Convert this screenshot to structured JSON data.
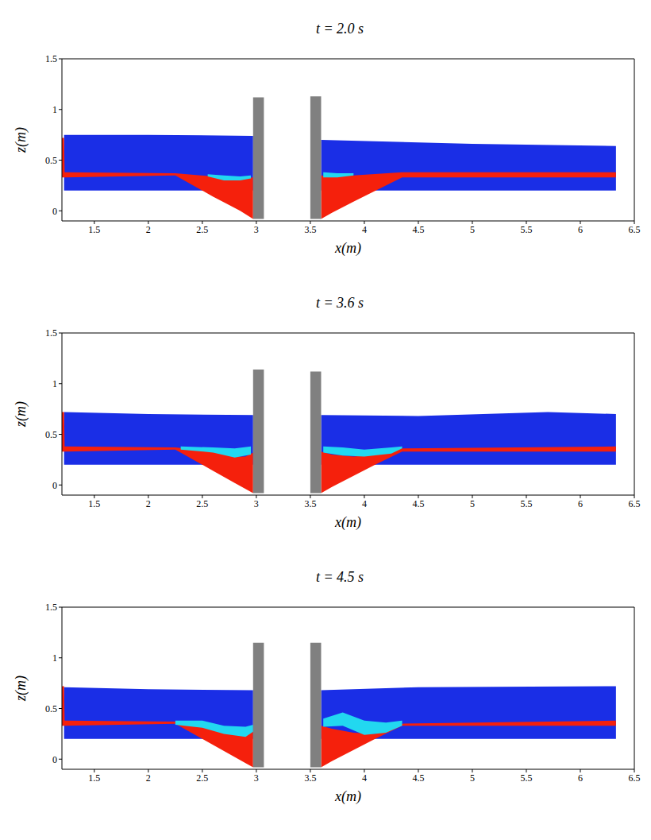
{
  "chart_data": [
    {
      "type": "area",
      "title": "t = 2.0 s",
      "x_label": "x(m)",
      "y_label": "z(m)",
      "xlim": [
        1.2,
        6.5
      ],
      "ylim": [
        -0.1,
        1.5
      ],
      "xticks": [
        1.5,
        2,
        2.5,
        3,
        3.5,
        4,
        4.5,
        5,
        5.5,
        6,
        6.5
      ],
      "yticks": [
        0,
        0.5,
        1,
        1.5
      ],
      "series": [
        {
          "color": "#1a2ee6",
          "x": [
            1.22,
            2.0,
            2.97
          ],
          "values": [
            [
              0.2,
              0.75
            ],
            [
              0.2,
              0.75
            ],
            [
              0.2,
              0.74
            ]
          ]
        },
        {
          "color": "#1a2ee6",
          "x": [
            3.6,
            5.0,
            6.33
          ],
          "values": [
            [
              0.2,
              0.7
            ],
            [
              0.2,
              0.66
            ],
            [
              0.2,
              0.64
            ]
          ]
        },
        {
          "color": "#f5200c",
          "x": [
            1.2,
            1.22,
            1.225,
            2.25,
            2.6,
            2.85,
            2.97
          ],
          "values": [
            [
              0.33,
              0.72
            ],
            [
              0.33,
              0.72
            ],
            [
              0.33,
              0.38
            ],
            [
              0.35,
              0.37
            ],
            [
              0.14,
              0.34
            ],
            [
              0.0,
              0.32
            ],
            [
              -0.08,
              0.33
            ]
          ]
        },
        {
          "color": "#f5200c",
          "x": [
            3.6,
            3.7,
            3.9,
            4.35,
            6.33
          ],
          "values": [
            [
              -0.08,
              0.35
            ],
            [
              -0.02,
              0.34
            ],
            [
              0.09,
              0.35
            ],
            [
              0.33,
              0.38
            ],
            [
              0.33,
              0.38
            ]
          ]
        },
        {
          "color": "#22d8f0",
          "x": [
            2.55,
            2.7,
            2.85,
            2.95
          ],
          "values": [
            [
              0.34,
              0.36
            ],
            [
              0.3,
              0.35
            ],
            [
              0.3,
              0.34
            ],
            [
              0.32,
              0.35
            ]
          ]
        },
        {
          "color": "#22d8f0",
          "x": [
            3.62,
            3.75,
            3.9
          ],
          "values": [
            [
              0.33,
              0.38
            ],
            [
              0.33,
              0.37
            ],
            [
              0.35,
              0.37
            ]
          ]
        },
        {
          "color": "#808080",
          "x": [
            2.97,
            3.07
          ],
          "values": [
            [
              -0.08,
              1.12
            ],
            [
              -0.08,
              1.12
            ]
          ]
        },
        {
          "color": "#808080",
          "x": [
            3.5,
            3.6
          ],
          "values": [
            [
              -0.08,
              1.13
            ],
            [
              -0.08,
              1.13
            ]
          ]
        }
      ]
    },
    {
      "type": "area",
      "title": "t = 3.6 s",
      "x_label": "x(m)",
      "y_label": "z(m)",
      "xlim": [
        1.2,
        6.5
      ],
      "ylim": [
        -0.1,
        1.5
      ],
      "xticks": [
        1.5,
        2,
        2.5,
        3,
        3.5,
        4,
        4.5,
        5,
        5.5,
        6,
        6.5
      ],
      "yticks": [
        0,
        0.5,
        1,
        1.5
      ],
      "series": [
        {
          "color": "#1a2ee6",
          "x": [
            1.22,
            2.0,
            2.97
          ],
          "values": [
            [
              0.2,
              0.72
            ],
            [
              0.2,
              0.7
            ],
            [
              0.2,
              0.69
            ]
          ]
        },
        {
          "color": "#1a2ee6",
          "x": [
            3.6,
            4.5,
            5.7,
            6.33
          ],
          "values": [
            [
              0.2,
              0.69
            ],
            [
              0.2,
              0.68
            ],
            [
              0.2,
              0.72
            ],
            [
              0.2,
              0.7
            ]
          ]
        },
        {
          "color": "#f5200c",
          "x": [
            1.2,
            1.22,
            1.225,
            2.25,
            2.6,
            2.8,
            2.9,
            2.97
          ],
          "values": [
            [
              0.33,
              0.72
            ],
            [
              0.33,
              0.72
            ],
            [
              0.33,
              0.38
            ],
            [
              0.35,
              0.37
            ],
            [
              0.14,
              0.33
            ],
            [
              0.02,
              0.28
            ],
            [
              -0.04,
              0.28
            ],
            [
              -0.08,
              0.32
            ]
          ]
        },
        {
          "color": "#f5200c",
          "x": [
            3.6,
            3.7,
            3.9,
            4.1,
            4.35,
            6.33
          ],
          "values": [
            [
              -0.08,
              0.33
            ],
            [
              -0.02,
              0.3
            ],
            [
              0.09,
              0.28
            ],
            [
              0.2,
              0.3
            ],
            [
              0.33,
              0.36
            ],
            [
              0.33,
              0.38
            ]
          ]
        },
        {
          "color": "#22d8f0",
          "x": [
            2.3,
            2.6,
            2.8,
            2.95
          ],
          "values": [
            [
              0.35,
              0.38
            ],
            [
              0.32,
              0.37
            ],
            [
              0.27,
              0.36
            ],
            [
              0.3,
              0.38
            ]
          ]
        },
        {
          "color": "#22d8f0",
          "x": [
            3.62,
            3.8,
            4.0,
            4.25,
            4.35
          ],
          "values": [
            [
              0.32,
              0.38
            ],
            [
              0.29,
              0.37
            ],
            [
              0.28,
              0.35
            ],
            [
              0.31,
              0.37
            ],
            [
              0.36,
              0.38
            ]
          ]
        },
        {
          "color": "#808080",
          "x": [
            2.97,
            3.07
          ],
          "values": [
            [
              -0.08,
              1.14
            ],
            [
              -0.08,
              1.14
            ]
          ]
        },
        {
          "color": "#808080",
          "x": [
            3.5,
            3.6
          ],
          "values": [
            [
              -0.08,
              1.12
            ],
            [
              -0.08,
              1.12
            ]
          ]
        }
      ]
    },
    {
      "type": "area",
      "title": "t = 4.5 s",
      "x_label": "x(m)",
      "y_label": "z(m)",
      "xlim": [
        1.2,
        6.5
      ],
      "ylim": [
        -0.1,
        1.5
      ],
      "xticks": [
        1.5,
        2,
        2.5,
        3,
        3.5,
        4,
        4.5,
        5,
        5.5,
        6,
        6.5
      ],
      "yticks": [
        0,
        0.5,
        1,
        1.5
      ],
      "series": [
        {
          "color": "#1a2ee6",
          "x": [
            1.22,
            2.0,
            2.97
          ],
          "values": [
            [
              0.2,
              0.71
            ],
            [
              0.2,
              0.69
            ],
            [
              0.2,
              0.68
            ]
          ]
        },
        {
          "color": "#1a2ee6",
          "x": [
            3.6,
            4.5,
            6.33
          ],
          "values": [
            [
              0.2,
              0.68
            ],
            [
              0.2,
              0.71
            ],
            [
              0.2,
              0.72
            ]
          ]
        },
        {
          "color": "#f5200c",
          "x": [
            1.2,
            1.22,
            1.225,
            2.25,
            2.5,
            2.7,
            2.9,
            2.97
          ],
          "values": [
            [
              0.33,
              0.72
            ],
            [
              0.33,
              0.72
            ],
            [
              0.33,
              0.38
            ],
            [
              0.35,
              0.37
            ],
            [
              0.2,
              0.32
            ],
            [
              0.08,
              0.26
            ],
            [
              -0.04,
              0.23
            ],
            [
              -0.08,
              0.28
            ]
          ]
        },
        {
          "color": "#f5200c",
          "x": [
            3.6,
            3.7,
            3.9,
            4.1,
            4.35,
            6.33
          ],
          "values": [
            [
              -0.08,
              0.33
            ],
            [
              -0.02,
              0.3
            ],
            [
              0.09,
              0.26
            ],
            [
              0.2,
              0.25
            ],
            [
              0.33,
              0.35
            ],
            [
              0.33,
              0.38
            ]
          ]
        },
        {
          "color": "#22d8f0",
          "x": [
            2.25,
            2.5,
            2.7,
            2.9,
            2.97
          ],
          "values": [
            [
              0.34,
              0.38
            ],
            [
              0.31,
              0.38
            ],
            [
              0.25,
              0.33
            ],
            [
              0.22,
              0.32
            ],
            [
              0.27,
              0.34
            ]
          ]
        },
        {
          "color": "#22d8f0",
          "x": [
            3.62,
            3.8,
            4.0,
            4.2,
            4.35
          ],
          "values": [
            [
              0.32,
              0.4
            ],
            [
              0.33,
              0.46
            ],
            [
              0.24,
              0.38
            ],
            [
              0.26,
              0.36
            ],
            [
              0.33,
              0.38
            ]
          ]
        },
        {
          "color": "#808080",
          "x": [
            2.97,
            3.07
          ],
          "values": [
            [
              -0.08,
              1.15
            ],
            [
              -0.08,
              1.15
            ]
          ]
        },
        {
          "color": "#808080",
          "x": [
            3.5,
            3.6
          ],
          "values": [
            [
              -0.08,
              1.15
            ],
            [
              -0.08,
              1.15
            ]
          ]
        }
      ]
    }
  ]
}
